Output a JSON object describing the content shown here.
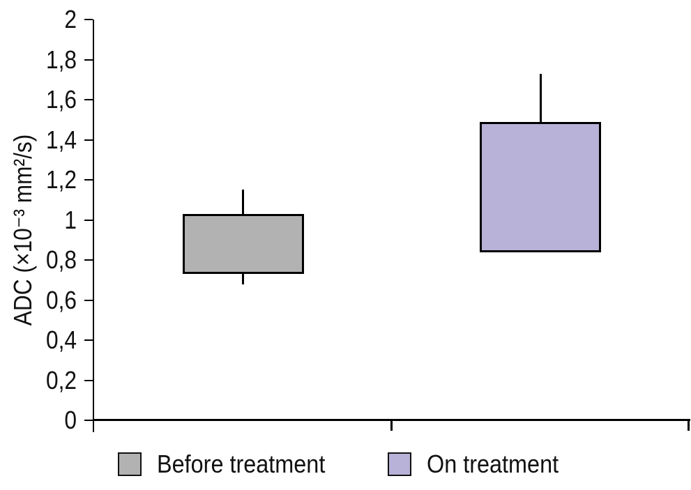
{
  "chart_data": {
    "type": "box",
    "title": "",
    "xlabel": "",
    "ylabel": "ADC (×10⁻³ mm²/s)",
    "ylim": [
      0,
      2
    ],
    "ytick_step": 0.2,
    "decimal_separator": ",",
    "grid": false,
    "yticks": [
      {
        "value": 2,
        "label": "2"
      },
      {
        "value": 1.8,
        "label": "1,8"
      },
      {
        "value": 1.6,
        "label": "1,6"
      },
      {
        "value": 1.4,
        "label": "1,4"
      },
      {
        "value": 1.2,
        "label": "1,2"
      },
      {
        "value": 1,
        "label": "1"
      },
      {
        "value": 0.8,
        "label": "0,8"
      },
      {
        "value": 0.6,
        "label": "0,6"
      },
      {
        "value": 0.4,
        "label": "0,4"
      },
      {
        "value": 0.2,
        "label": "0,2"
      },
      {
        "value": 0,
        "label": "0"
      }
    ],
    "categories": [
      "Before treatment",
      "On treatment"
    ],
    "series": [
      {
        "name": "Before treatment",
        "color": "#b2b2b2",
        "box_low": 0.73,
        "box_high": 1.03,
        "whisker_low": 0.68,
        "whisker_high": 1.15
      },
      {
        "name": "On treatment",
        "color": "#b8b1d8",
        "box_low": 0.84,
        "box_high": 1.49,
        "whisker_low": null,
        "whisker_high": 1.73
      }
    ],
    "legend": {
      "position": "bottom",
      "items": [
        {
          "label": "Before treatment",
          "color": "#b2b2b2"
        },
        {
          "label": "On treatment",
          "color": "#b8b1d8"
        }
      ]
    }
  }
}
